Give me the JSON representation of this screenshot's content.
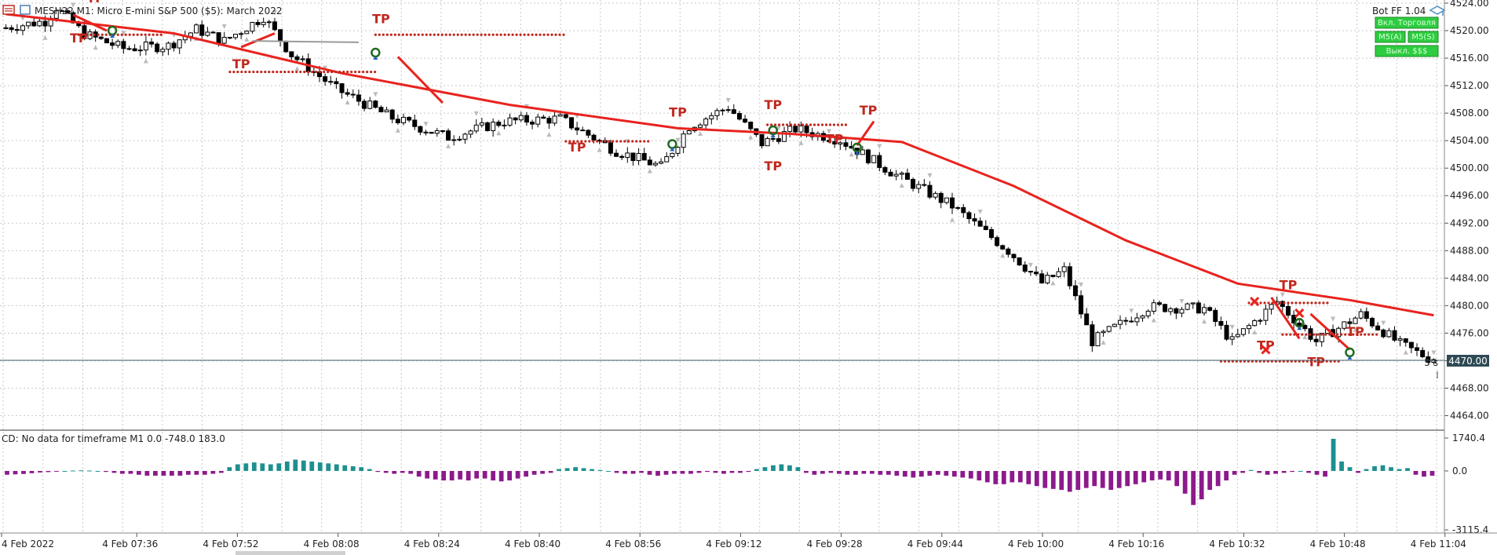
{
  "window": {
    "title": "MESH22,M1:  Micro E-mini S&P 500 ($5): March 2022",
    "expert_label": "Bot FF 1.04"
  },
  "panel_buttons": [
    "Вкл. Торговля",
    "M5(A)",
    "M5(S)",
    "Выкл. $$$"
  ],
  "price_axis": {
    "ticks": [
      "4524.00",
      "4520.00",
      "4516.00",
      "4512.00",
      "4508.00",
      "4504.00",
      "4500.00",
      "4496.00",
      "4492.00",
      "4488.00",
      "4484.00",
      "4480.00",
      "4476.00",
      "4472.00",
      "4468.00",
      "4464.00"
    ],
    "current_price": "4470.00",
    "bar_timer": "5 s"
  },
  "time_axis": {
    "labels": [
      "4 Feb 2022",
      "4 Feb 07:36",
      "4 Feb 07:52",
      "4 Feb 08:08",
      "4 Feb 08:24",
      "4 Feb 08:40",
      "4 Feb 08:56",
      "4 Feb 09:12",
      "4 Feb 09:28",
      "4 Feb 09:44",
      "4 Feb 10:00",
      "4 Feb 10:16",
      "4 Feb 10:32",
      "4 Feb 10:48",
      "4 Feb 11:04"
    ]
  },
  "indicator": {
    "title": "CD: No data for timeframe M1 0.0 -748.0 183.0",
    "ticks": [
      "1740.4",
      "0.0",
      "-3115.4"
    ]
  },
  "markers": {
    "tp_label": "TP"
  },
  "colors": {
    "ma_line": "#e8231e",
    "bull_hist": "#1e8f8f",
    "bear_hist": "#8c1a8c",
    "tp_text": "#c0281e",
    "panel_button": "#2ecc40",
    "price_tag": "#2e4a54"
  },
  "chart_data": [
    {
      "type": "candlestick",
      "title": "MESH22,M1:  Micro E-mini S&P 500 ($5): March 2022",
      "y_range": [
        4462,
        4524
      ],
      "grid": true,
      "price_trend": [
        [
          0,
          4520.3
        ],
        [
          8,
          4521.4
        ],
        [
          10,
          4523.4
        ],
        [
          15,
          4519.5
        ],
        [
          22,
          4517.4
        ],
        [
          30,
          4517.8
        ],
        [
          35,
          4520.2
        ],
        [
          40,
          4518.5
        ],
        [
          47,
          4522.0
        ],
        [
          52,
          4516.5
        ],
        [
          60,
          4511.5
        ],
        [
          70,
          4507.3
        ],
        [
          80,
          4504.5
        ],
        [
          90,
          4506.8
        ],
        [
          100,
          4507.2
        ],
        [
          110,
          4502.5
        ],
        [
          118,
          4500.2
        ],
        [
          123,
          4506.1
        ],
        [
          130,
          4508.9
        ],
        [
          136,
          4503.6
        ],
        [
          142,
          4505.7
        ],
        [
          150,
          4504.1
        ],
        [
          160,
          4499.0
        ],
        [
          170,
          4494.5
        ],
        [
          180,
          4488.0
        ],
        [
          186,
          4483.3
        ],
        [
          190,
          4485.2
        ],
        [
          195,
          4474.8
        ],
        [
          205,
          4479.8
        ],
        [
          215,
          4479.6
        ],
        [
          220,
          4474.8
        ],
        [
          228,
          4480.6
        ],
        [
          235,
          4474.8
        ],
        [
          243,
          4478.7
        ],
        [
          250,
          4474.4
        ],
        [
          255,
          4472.4
        ]
      ],
      "moving_average": [
        [
          0,
          4522.4
        ],
        [
          30,
          4519.6
        ],
        [
          60,
          4513.8
        ],
        [
          90,
          4509.2
        ],
        [
          120,
          4505.8
        ],
        [
          140,
          4505.0
        ],
        [
          160,
          4503.8
        ],
        [
          180,
          4497.4
        ],
        [
          200,
          4489.5
        ],
        [
          220,
          4483.2
        ],
        [
          240,
          4480.8
        ],
        [
          255,
          4478.6
        ]
      ],
      "current_price": 4470.0
    },
    {
      "type": "bar",
      "title": "CD: No data for timeframe M1 0.0 -748.0 183.0",
      "y_range": [
        -3115.4,
        1740.4
      ],
      "values": [
        -200,
        -180,
        -160,
        -120,
        -80,
        -60,
        -20,
        0,
        20,
        30,
        20,
        0,
        -50,
        -100,
        -150,
        -150,
        -200,
        -250,
        -250,
        -250,
        -250,
        -250,
        -200,
        -200,
        -200,
        -150,
        -100,
        200,
        350,
        400,
        450,
        400,
        350,
        400,
        500,
        600,
        550,
        500,
        450,
        400,
        350,
        300,
        250,
        200,
        100,
        -50,
        -100,
        -150,
        -100,
        -150,
        -300,
        -400,
        -450,
        -500,
        -500,
        -450,
        -500,
        -400,
        -400,
        -500,
        -550,
        -500,
        -400,
        -300,
        -200,
        -150,
        -100,
        100,
        150,
        200,
        150,
        100,
        50,
        0,
        -100,
        -150,
        -150,
        -100,
        -200,
        -250,
        -200,
        -150,
        -150,
        -150,
        -100,
        -50,
        -100,
        -150,
        -100,
        -100,
        -50,
        100,
        200,
        300,
        350,
        300,
        200,
        -100,
        -200,
        -150,
        -100,
        -150,
        -200,
        -200,
        -150,
        -150,
        -200,
        -200,
        -250,
        -300,
        -350,
        -300,
        -250,
        -200,
        -250,
        -300,
        -350,
        -400,
        -500,
        -600,
        -700,
        -700,
        -600,
        -600,
        -700,
        -800,
        -900,
        -950,
        -1000,
        -1100,
        -1000,
        -900,
        -800,
        -900,
        -1000,
        -900,
        -800,
        -700,
        -600,
        -500,
        -450,
        -500,
        -800,
        -1200,
        -1800,
        -1500,
        -1000,
        -800,
        -500,
        -200,
        -100,
        50,
        -100,
        -200,
        -150,
        -100,
        -50,
        0,
        -100,
        -200,
        -300,
        1700,
        500,
        200,
        -100,
        100,
        250,
        300,
        200,
        100,
        150,
        -200,
        -300,
        -250
      ],
      "colors_by_sign": {
        "positive": "#1e8f8f",
        "negative": "#8c1a8c"
      }
    }
  ]
}
